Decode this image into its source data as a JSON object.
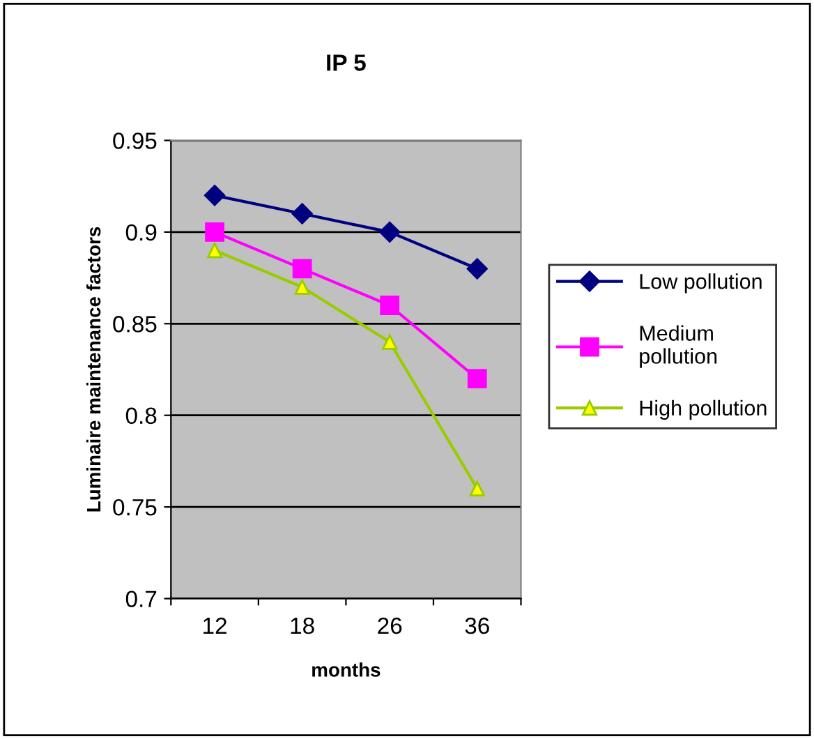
{
  "chart_data": {
    "type": "line",
    "title": "IP 5",
    "xlabel": "months",
    "ylabel": "Luminaire maintenance factors",
    "categories": [
      "12",
      "18",
      "26",
      "36"
    ],
    "series": [
      {
        "name": "Low pollution",
        "color": "#000080",
        "marker": "diamond",
        "values": [
          0.92,
          0.91,
          0.9,
          0.88
        ]
      },
      {
        "name": "Medium\npollution",
        "color": "#ff00ff",
        "marker": "square",
        "values": [
          0.9,
          0.88,
          0.86,
          0.82
        ]
      },
      {
        "name": "High pollution",
        "color": "#99cc00",
        "marker": "triangle",
        "values": [
          0.89,
          0.87,
          0.84,
          0.76
        ]
      }
    ],
    "ylim": [
      0.7,
      0.95
    ],
    "yticks": [
      0.7,
      0.75,
      0.8,
      0.85,
      0.9,
      0.95
    ],
    "grid": "y",
    "legend": "right"
  }
}
